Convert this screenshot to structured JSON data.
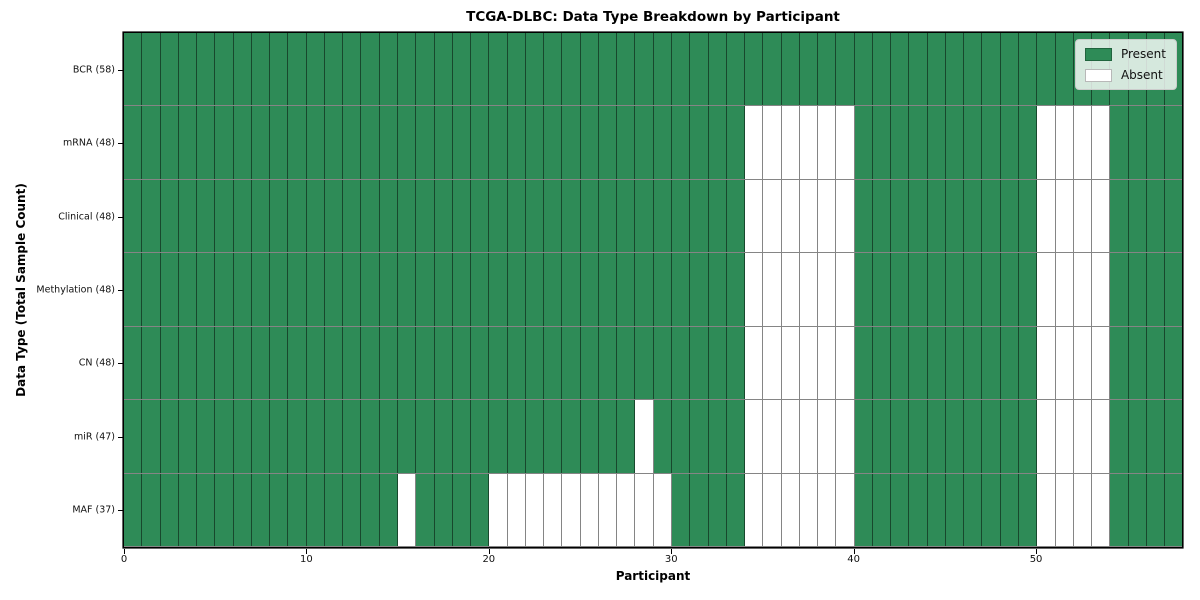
{
  "chart_data": {
    "type": "heatmap",
    "title": "TCGA-DLBC: Data Type Breakdown by Participant",
    "xlabel": "Participant",
    "ylabel": "Data Type (Total Sample Count)",
    "n_participants": 58,
    "x_range": [
      0,
      58
    ],
    "x_ticks": [
      0,
      10,
      20,
      30,
      40,
      50
    ],
    "grid": "cell-borders",
    "legend_position": "upper-right-inside",
    "colors": {
      "present": "#2e8b57",
      "absent": "#ffffff",
      "cell_edge": "rgba(0,0,0,0.48)"
    },
    "legend": [
      {
        "label": "Present",
        "key": "present"
      },
      {
        "label": "Absent",
        "key": "absent"
      }
    ],
    "rows": [
      {
        "label": "BCR (58)",
        "data_type": "BCR",
        "sample_count": 58,
        "absent_participants": []
      },
      {
        "label": "mRNA (48)",
        "data_type": "mRNA",
        "sample_count": 48,
        "absent_participants": [
          34,
          35,
          36,
          37,
          38,
          39,
          50,
          51,
          52,
          53
        ]
      },
      {
        "label": "Clinical (48)",
        "data_type": "Clinical",
        "sample_count": 48,
        "absent_participants": [
          34,
          35,
          36,
          37,
          38,
          39,
          50,
          51,
          52,
          53
        ]
      },
      {
        "label": "Methylation (48)",
        "data_type": "Methylation",
        "sample_count": 48,
        "absent_participants": [
          34,
          35,
          36,
          37,
          38,
          39,
          50,
          51,
          52,
          53
        ]
      },
      {
        "label": "CN (48)",
        "data_type": "CN",
        "sample_count": 48,
        "absent_participants": [
          34,
          35,
          36,
          37,
          38,
          39,
          50,
          51,
          52,
          53
        ]
      },
      {
        "label": "miR (47)",
        "data_type": "miR",
        "sample_count": 47,
        "absent_participants": [
          28,
          34,
          35,
          36,
          37,
          38,
          39,
          50,
          51,
          52,
          53
        ]
      },
      {
        "label": "MAF (37)",
        "data_type": "MAF",
        "sample_count": 37,
        "absent_participants": [
          15,
          20,
          21,
          22,
          23,
          24,
          25,
          26,
          27,
          28,
          29,
          34,
          35,
          36,
          37,
          38,
          39,
          50,
          51,
          52,
          53
        ]
      }
    ]
  }
}
